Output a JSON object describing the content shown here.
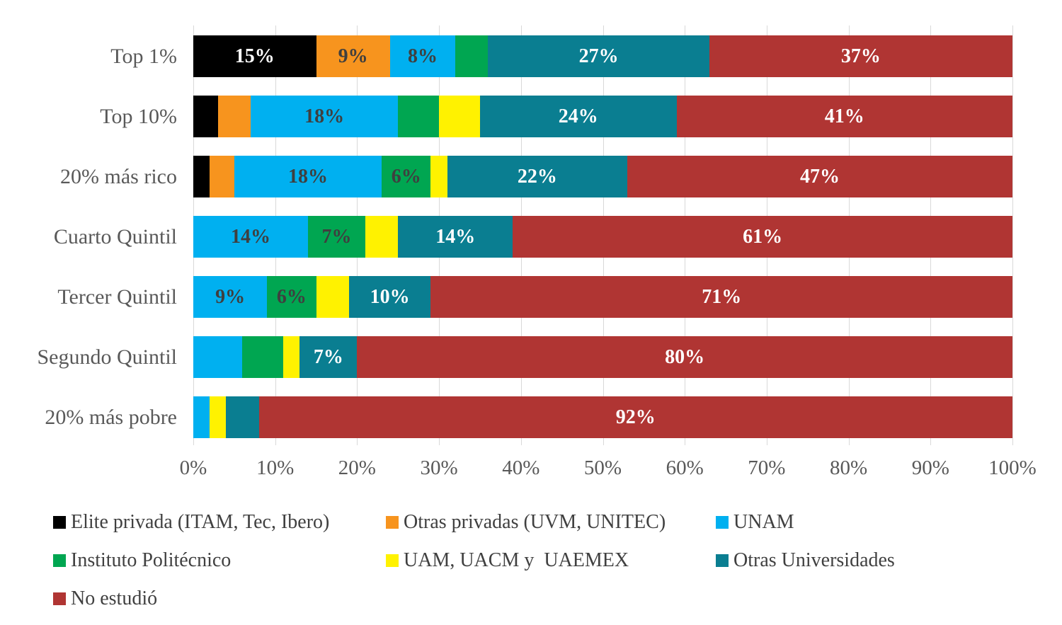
{
  "chart_data": {
    "type": "bar",
    "stacked": true,
    "orientation": "horizontal",
    "title": "",
    "xlabel": "",
    "ylabel": "",
    "xlim": [
      0,
      100
    ],
    "grid": true,
    "legend_position": "bottom",
    "x_ticks": [
      "0%",
      "10%",
      "20%",
      "30%",
      "40%",
      "50%",
      "60%",
      "70%",
      "80%",
      "90%",
      "100%"
    ],
    "categories": [
      "Top 1%",
      "Top 10%",
      "20% más rico",
      "Cuarto Quintil",
      "Tercer Quintil",
      "Segundo Quintil",
      "20% más pobre"
    ],
    "series": [
      {
        "name": "Elite privada (ITAM, Tec, Ibero)",
        "color": "#000000",
        "label_color": "#FFFFFF",
        "values": [
          15,
          3,
          2,
          0,
          0,
          0,
          0
        ]
      },
      {
        "name": "Otras privadas (UVM, UNITEC)",
        "color": "#F7941E",
        "label_color": "#3F3F3F",
        "values": [
          9,
          4,
          3,
          0,
          0,
          0,
          0
        ]
      },
      {
        "name": "UNAM",
        "color": "#00B0F0",
        "label_color": "#3F3F3F",
        "values": [
          8,
          18,
          18,
          14,
          9,
          6,
          2
        ]
      },
      {
        "name": "Instituto Politécnico",
        "color": "#00A651",
        "label_color": "#3F3F3F",
        "values": [
          4,
          5,
          6,
          7,
          6,
          5,
          0
        ]
      },
      {
        "name": "UAM, UACM y  UAEMEX",
        "color": "#FFF200",
        "label_color": "#3F3F3F",
        "values": [
          0,
          5,
          2,
          4,
          4,
          2,
          2
        ]
      },
      {
        "name": "Otras Universidades",
        "color": "#0A7E91",
        "label_color": "#FFFFFF",
        "values": [
          27,
          24,
          22,
          14,
          10,
          7,
          4
        ]
      },
      {
        "name": "No estudió",
        "color": "#B03533",
        "label_color": "#FFFFFF",
        "values": [
          37,
          41,
          47,
          61,
          71,
          80,
          92
        ]
      }
    ],
    "segment_labels": [
      [
        "15%",
        "9%",
        "8%",
        "",
        "",
        "27%",
        "37%"
      ],
      [
        "",
        "",
        "18%",
        "",
        "",
        "24%",
        "41%"
      ],
      [
        "",
        "",
        "18%",
        "6%",
        "",
        "22%",
        "47%"
      ],
      [
        "",
        "",
        "14%",
        "7%",
        "",
        "14%",
        "61%"
      ],
      [
        "",
        "",
        "9%",
        "6%",
        "",
        "10%",
        "71%"
      ],
      [
        "",
        "",
        "",
        "",
        "",
        "7%",
        "80%"
      ],
      [
        "",
        "",
        "",
        "",
        "",
        "",
        "92%"
      ]
    ],
    "colors": {
      "gridline": "#D9D9D9",
      "axis_text": "#595959",
      "category_text": "#595959",
      "legend_text": "#404040",
      "background": "#FFFFFF"
    }
  }
}
